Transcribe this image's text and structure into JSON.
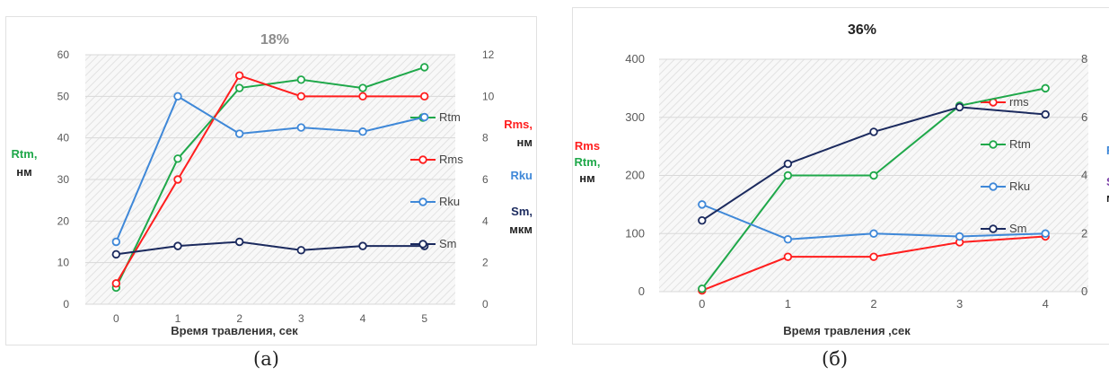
{
  "captions": {
    "a": "(а)",
    "b": "(б)"
  },
  "colors": {
    "rtm": "#1fa84a",
    "rms": "#ff1e1e",
    "rku": "#3f88d8",
    "sm": "#1b2a5e",
    "sm_b_label": "#7b3fa8",
    "grid": "#d9d9d9",
    "axis_text": "#595959"
  },
  "chart_data": [
    {
      "type": "line",
      "title": "18%",
      "xlabel": "Время травления, сек",
      "categories": [
        "0",
        "1",
        "2",
        "3",
        "4",
        "5"
      ],
      "left_axis": {
        "ticks": [
          "0",
          "10",
          "20",
          "30",
          "40",
          "50",
          "60"
        ],
        "ylim": [
          0,
          60
        ],
        "label": [
          {
            "text": "Rtm,",
            "color": "rtm"
          },
          {
            "text": "нм",
            "color": "plain"
          }
        ]
      },
      "right_axis": {
        "ticks": [
          "0",
          "2",
          "4",
          "6",
          "8",
          "10",
          "12"
        ],
        "ylim": [
          0,
          12
        ],
        "labels": [
          {
            "lines": [
              {
                "text": "Rms,",
                "color": "rms"
              },
              {
                "text": "нм",
                "color": "plain"
              }
            ]
          },
          {
            "lines": [
              {
                "text": "Rku",
                "color": "rku"
              }
            ]
          },
          {
            "lines": [
              {
                "text": "Sm,",
                "color": "sm"
              },
              {
                "text": "мкм",
                "color": "plain"
              }
            ]
          }
        ]
      },
      "legend_position": "right",
      "series": [
        {
          "name": "Rtm",
          "color": "rtm",
          "axis": "left",
          "values": [
            4,
            35,
            52,
            54,
            52,
            57
          ]
        },
        {
          "name": "Rms",
          "color": "rms",
          "axis": "right",
          "values": [
            1,
            6,
            11,
            10,
            10,
            10
          ]
        },
        {
          "name": "Rku",
          "color": "rku",
          "axis": "right",
          "values": [
            3,
            10,
            8.2,
            8.5,
            8.3,
            9
          ]
        },
        {
          "name": "Sm",
          "color": "sm",
          "axis": "right",
          "values": [
            2.4,
            2.8,
            3,
            2.6,
            2.8,
            2.8
          ]
        }
      ]
    },
    {
      "type": "line",
      "title": "36%",
      "xlabel": "Время травления ,сек",
      "categories": [
        "0",
        "1",
        "2",
        "3",
        "4"
      ],
      "left_axis": {
        "ticks": [
          "0",
          "100",
          "200",
          "300",
          "400"
        ],
        "ylim": [
          0,
          400
        ],
        "label": [
          {
            "text": "Rms",
            "color": "rms"
          },
          {
            "text": "Rtm,",
            "color": "rtm"
          },
          {
            "text": "нм",
            "color": "plain"
          }
        ]
      },
      "right_axis": {
        "ticks": [
          "0",
          "2",
          "4",
          "6",
          "8"
        ],
        "ylim": [
          0,
          8
        ],
        "labels": [
          {
            "lines": [
              {
                "text": "Rku",
                "color": "rku"
              }
            ]
          },
          {
            "lines": [
              {
                "text": "Sm,",
                "color": "sm_b_label"
              },
              {
                "text": "мкм",
                "color": "plain"
              }
            ]
          }
        ]
      },
      "legend_position": "right",
      "series": [
        {
          "name": "rms",
          "color": "rms",
          "axis": "left",
          "values": [
            2,
            60,
            60,
            85,
            95
          ]
        },
        {
          "name": "Rtm",
          "color": "rtm",
          "axis": "left",
          "values": [
            5,
            200,
            200,
            320,
            350
          ]
        },
        {
          "name": "Rku",
          "color": "rku",
          "axis": "right",
          "values": [
            3,
            1.8,
            2,
            1.9,
            2
          ]
        },
        {
          "name": "Sm",
          "color": "sm",
          "axis": "right",
          "values": [
            2.45,
            4.4,
            5.5,
            6.35,
            6.1
          ]
        }
      ]
    }
  ]
}
